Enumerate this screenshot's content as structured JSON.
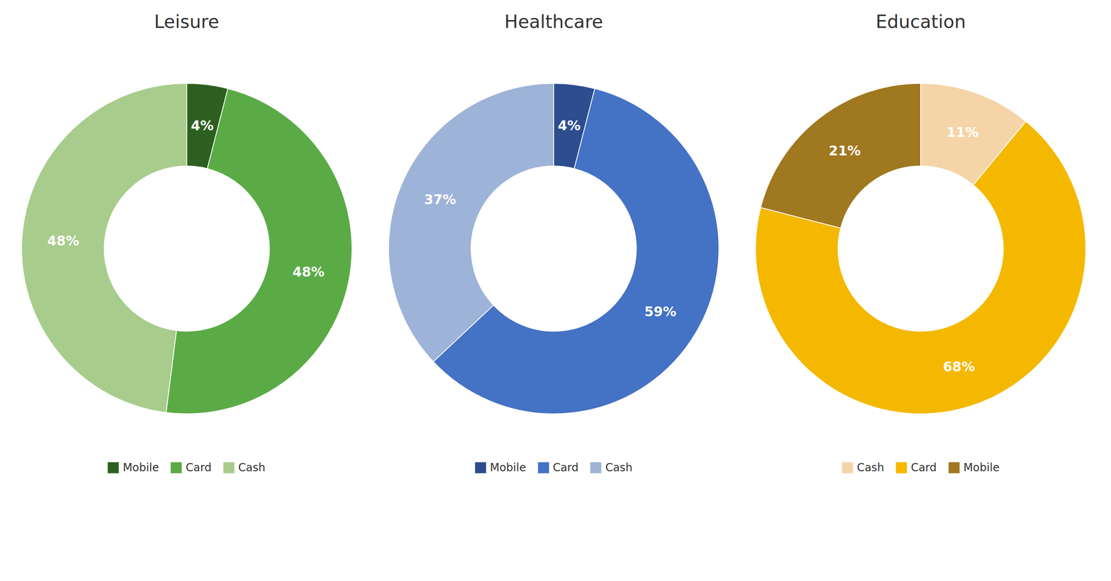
{
  "chart_data": [
    {
      "type": "pie",
      "title": "Leisure",
      "categories": [
        "Mobile",
        "Card",
        "Cash"
      ],
      "values": [
        4,
        48,
        48
      ],
      "value_labels": [
        "4%",
        "48%",
        "48%"
      ],
      "colors": [
        "#2d6020",
        "#5aab46",
        "#a8cc8c"
      ],
      "data_labels": true
    },
    {
      "type": "pie",
      "title": "Healthcare",
      "categories": [
        "Mobile",
        "Card",
        "Cash"
      ],
      "values": [
        4,
        59,
        37
      ],
      "value_labels": [
        "4%",
        "59%",
        "37%"
      ],
      "colors": [
        "#2d4d8e",
        "#4472c4",
        "#9eb3d8"
      ],
      "data_labels": true
    },
    {
      "type": "pie",
      "title": "Education",
      "categories": [
        "Cash",
        "Card",
        "Mobile"
      ],
      "values": [
        11,
        68,
        21
      ],
      "value_labels": [
        "11%",
        "68%",
        "21%"
      ],
      "colors": [
        "#f5d5a8",
        "#f5b800",
        "#a07820"
      ],
      "data_labels": true
    }
  ]
}
